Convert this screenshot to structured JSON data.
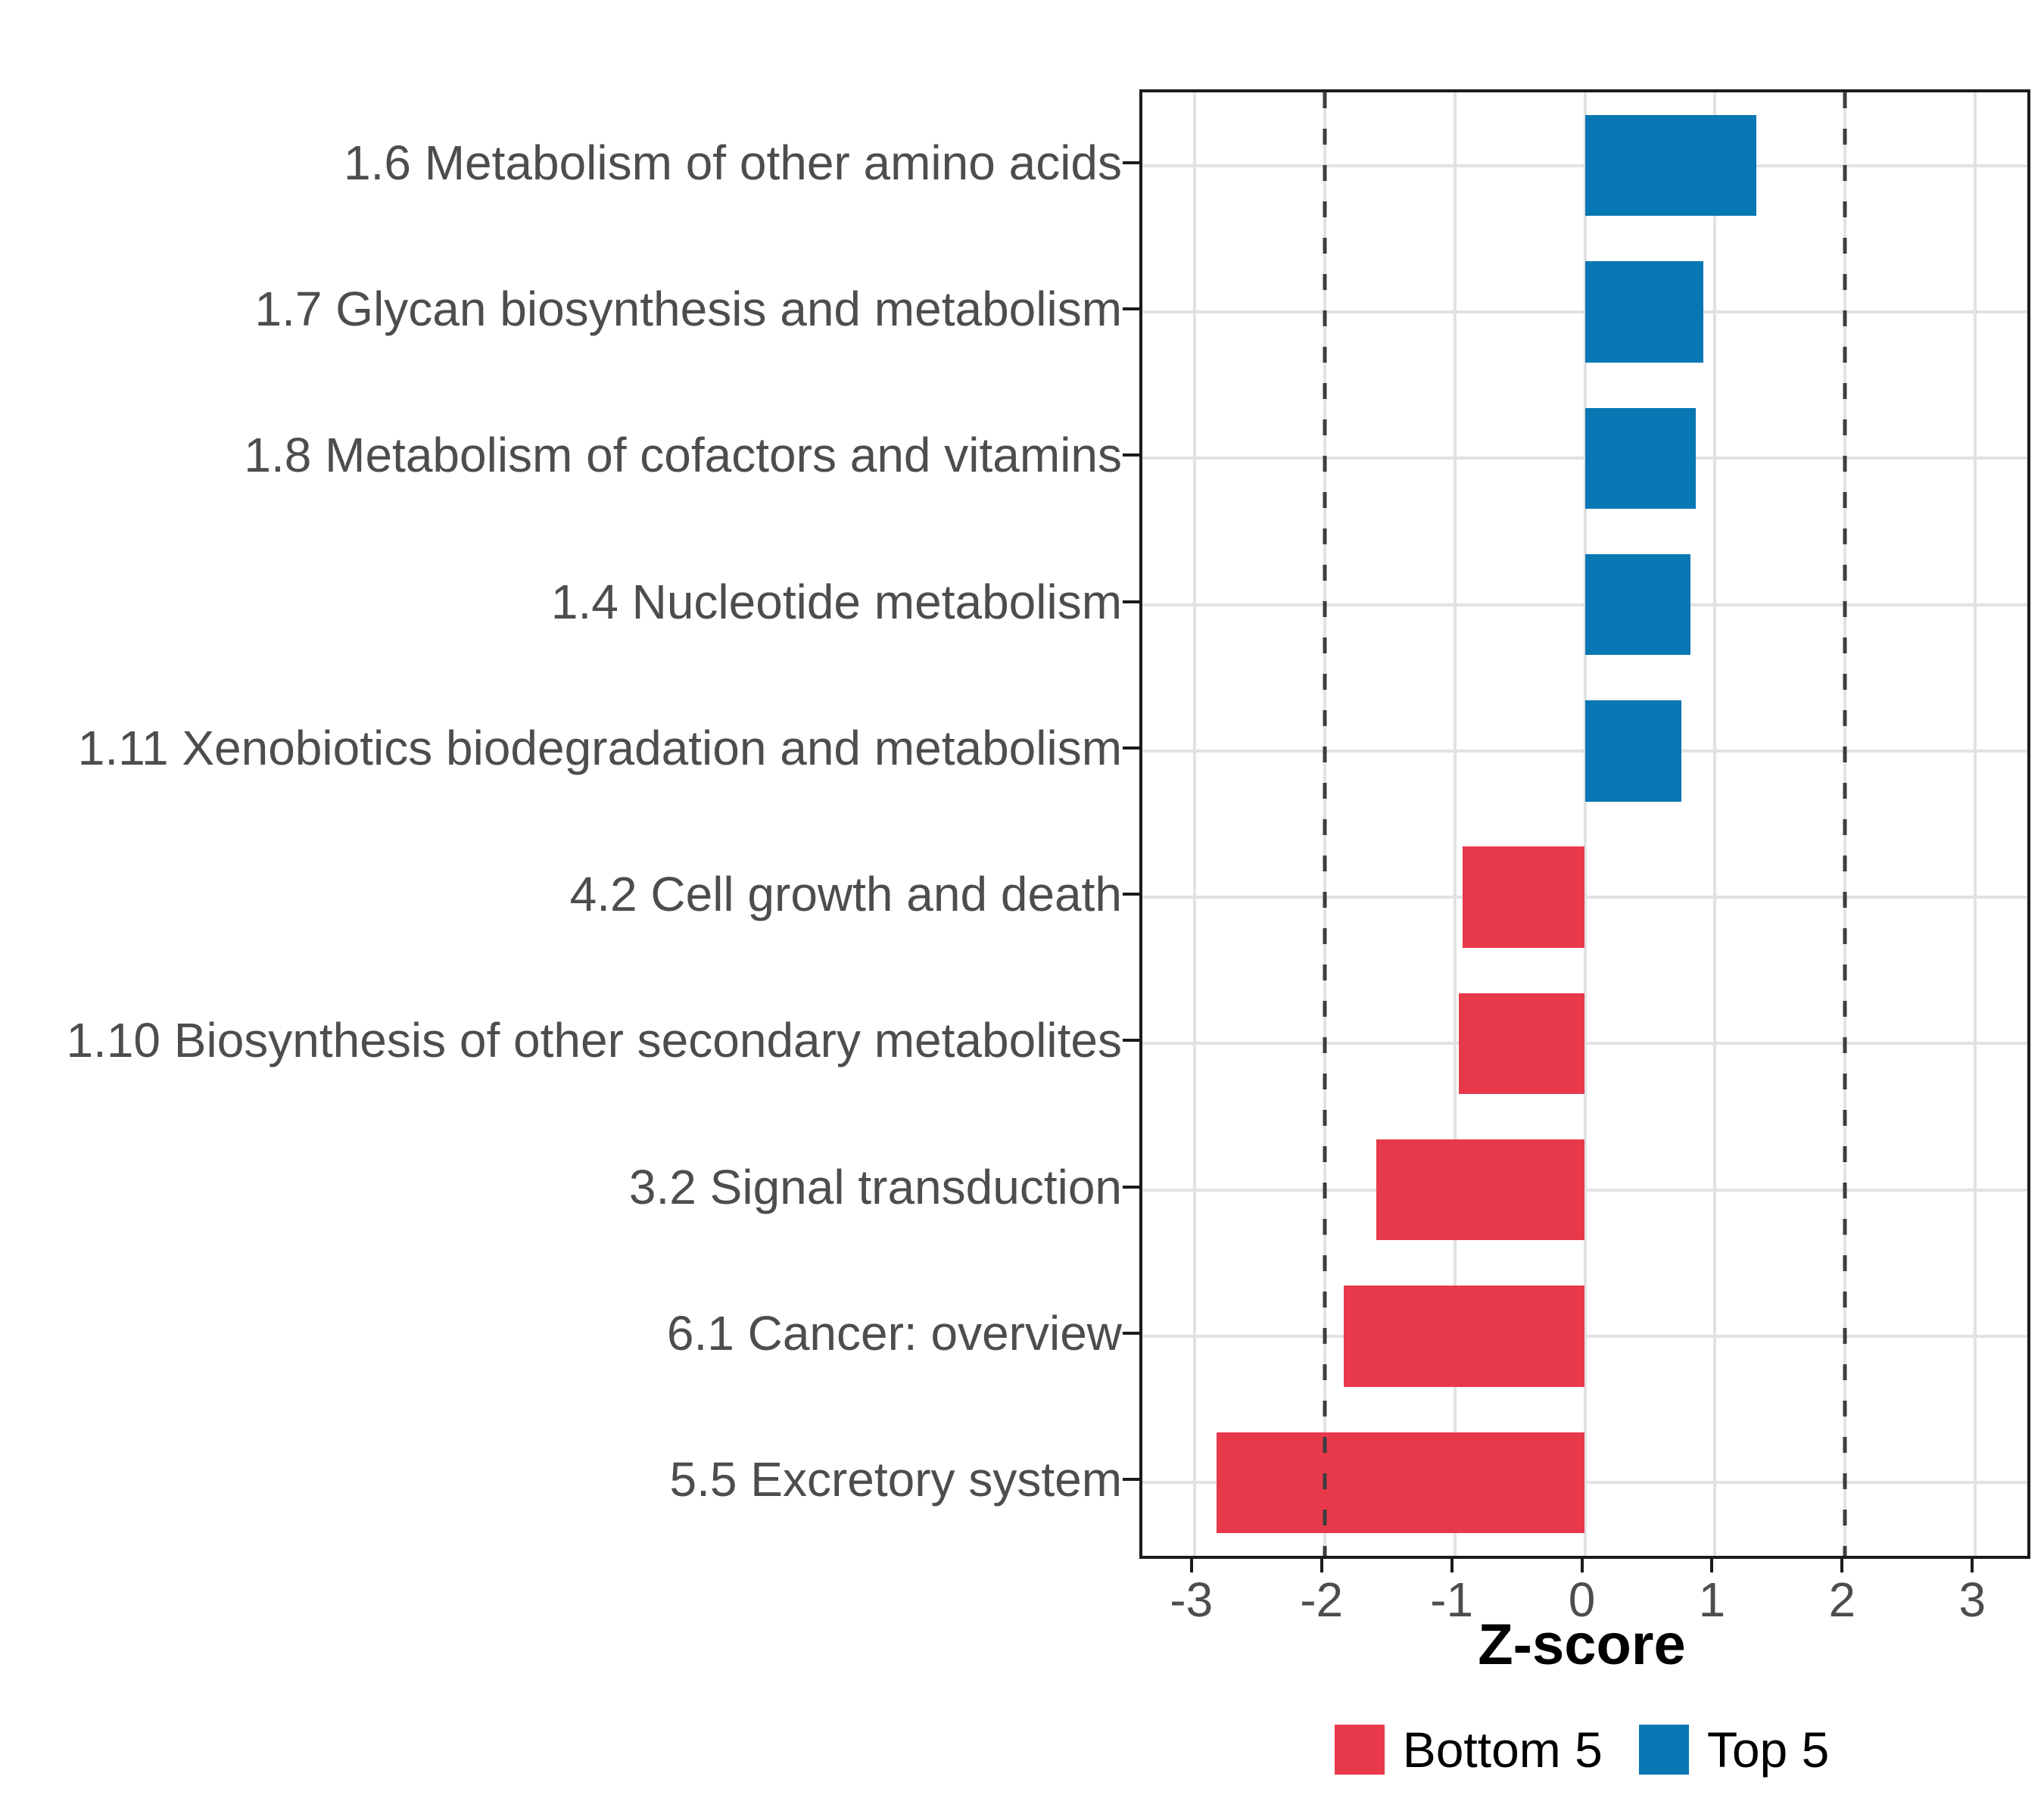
{
  "chart_data": {
    "type": "bar",
    "orientation": "horizontal",
    "title": "",
    "xlabel": "Z-score",
    "ylabel": "",
    "xlim": [
      -3.4,
      3.4
    ],
    "x_ticks": [
      -3,
      -2,
      -1,
      0,
      1,
      2,
      3
    ],
    "reference_lines": [
      -2,
      2
    ],
    "grid": "major-on",
    "categories": [
      "1.6 Metabolism of other amino acids",
      "1.7 Glycan biosynthesis and metabolism",
      "1.8 Metabolism of cofactors and vitamins",
      "1.4 Nucleotide metabolism",
      "1.11 Xenobiotics biodegradation and metabolism",
      "4.2 Cell growth and death",
      "1.10 Biosynthesis of other secondary metabolites",
      "3.2 Signal transduction",
      "6.1 Cancer: overview",
      "5.5 Excretory system"
    ],
    "values": [
      1.32,
      0.91,
      0.85,
      0.81,
      0.74,
      -0.94,
      -0.97,
      -1.6,
      -1.85,
      -2.83
    ],
    "groups": [
      "Top 5",
      "Top 5",
      "Top 5",
      "Top 5",
      "Top 5",
      "Bottom 5",
      "Bottom 5",
      "Bottom 5",
      "Bottom 5",
      "Bottom 5"
    ],
    "group_colors": {
      "Bottom 5": "#e8394a",
      "Top 5": "#0877b4"
    }
  },
  "legend": {
    "position": "bottom",
    "items": [
      {
        "label": "Bottom 5",
        "color": "#e8394a"
      },
      {
        "label": "Top 5",
        "color": "#0877b4"
      }
    ]
  },
  "colors": {
    "grid": "#e2e2e2",
    "dashed_line": "#3d3d3d",
    "panel_border": "#1b1b1b",
    "axis_text": "#4d4d4d",
    "title_text": "#000000",
    "background": "#ffffff"
  }
}
